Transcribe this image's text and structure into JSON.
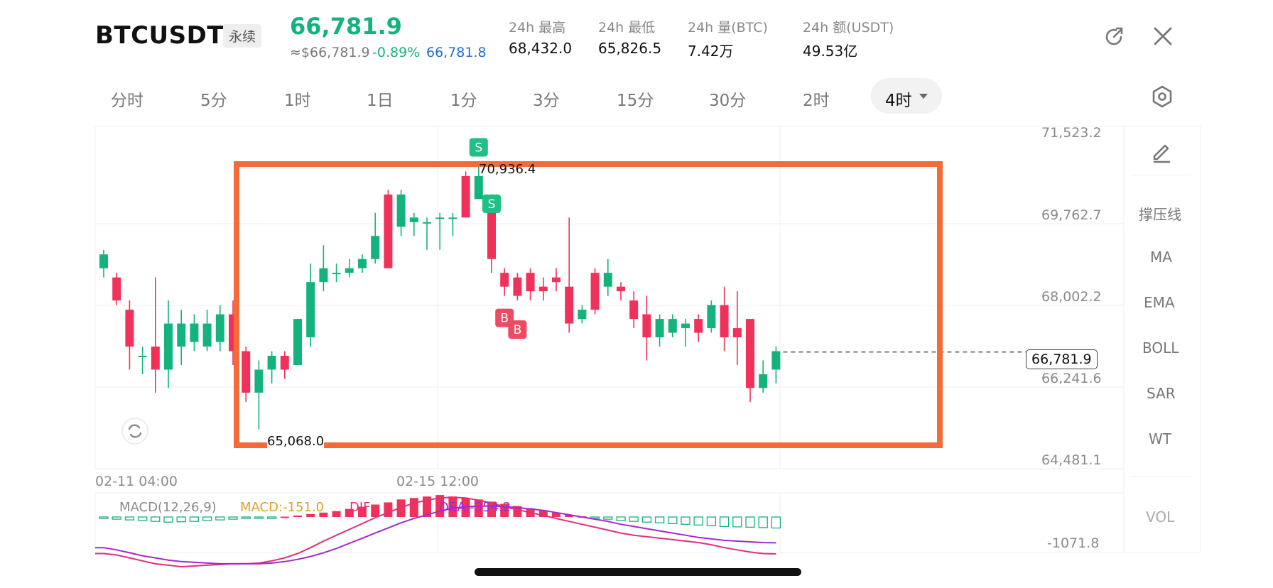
{
  "header": {
    "symbol": "BTCUSDT",
    "contract_type": "永续",
    "last_price": "66,781.9",
    "approx_usd": "≈$66,781.9",
    "change_pct": "-0.89%",
    "mark_price": "66,781.8",
    "stats": [
      {
        "label": "24h  最高",
        "value": "68,432.0"
      },
      {
        "label": "24h  最低",
        "value": "65,826.5"
      },
      {
        "label": "24h  量(BTC)",
        "value": "7.42万"
      },
      {
        "label": "24h  额(USDT)",
        "value": "49.53亿"
      }
    ],
    "icons": {
      "share": "share-icon",
      "close": "close-icon"
    }
  },
  "timeframes": {
    "tabs": [
      "分时",
      "5分",
      "1时",
      "1日",
      "1分",
      "3分",
      "15分",
      "30分",
      "2时",
      "4时"
    ],
    "active": "4时",
    "settings_icon": "hexagon-settings-icon"
  },
  "side_panel": {
    "draw_icon": "pen-icon",
    "items": [
      "撑压线",
      "MA",
      "EMA",
      "BOLL",
      "SAR",
      "WT"
    ],
    "vol": "VOL"
  },
  "colors": {
    "up": "#14b37d",
    "down": "#f0325a",
    "highlight_box": "#f26b3a",
    "macd_line": "#e0307a",
    "signal_line": "#a12ad0"
  },
  "chart_data": {
    "type": "candlestick",
    "price_axis": [
      "71,523.2",
      "69,762.7",
      "68,002.2",
      "66,241.6",
      "64,481.1"
    ],
    "ylim": [
      64481.1,
      71523.2
    ],
    "x_labels": [
      "02-11 04:00",
      "02-15 12:00"
    ],
    "current_price_tag": "66,781.9",
    "max_marker": "70,936.4",
    "min_marker": "65,068.0",
    "candles": [
      {
        "o": 68600,
        "c": 68900,
        "h": 69000,
        "l": 68400
      },
      {
        "o": 68400,
        "c": 67900,
        "h": 68500,
        "l": 67800
      },
      {
        "o": 67700,
        "c": 66900,
        "h": 67900,
        "l": 66400
      },
      {
        "o": 66700,
        "c": 66700,
        "h": 66900,
        "l": 66300
      },
      {
        "o": 66900,
        "c": 66400,
        "h": 68400,
        "l": 65900
      },
      {
        "o": 66400,
        "c": 67400,
        "h": 67900,
        "l": 66000
      },
      {
        "o": 66900,
        "c": 67400,
        "h": 67700,
        "l": 66500
      },
      {
        "o": 67000,
        "c": 67400,
        "h": 67600,
        "l": 66800
      },
      {
        "o": 66900,
        "c": 67400,
        "h": 67700,
        "l": 66800
      },
      {
        "o": 67000,
        "c": 67600,
        "h": 67800,
        "l": 66800
      },
      {
        "o": 67600,
        "c": 66800,
        "h": 67900,
        "l": 66500
      },
      {
        "o": 66800,
        "c": 65900,
        "h": 66900,
        "l": 65700
      },
      {
        "o": 65900,
        "c": 66400,
        "h": 66600,
        "l": 65100
      },
      {
        "o": 66400,
        "c": 66700,
        "h": 66800,
        "l": 66100
      },
      {
        "o": 66700,
        "c": 66400,
        "h": 66800,
        "l": 66200
      },
      {
        "o": 66500,
        "c": 67500,
        "h": 67500,
        "l": 66500
      },
      {
        "o": 67100,
        "c": 68300,
        "h": 68700,
        "l": 66900
      },
      {
        "o": 68300,
        "c": 68600,
        "h": 69100,
        "l": 68100
      },
      {
        "o": 68500,
        "c": 68500,
        "h": 68700,
        "l": 68300
      },
      {
        "o": 68500,
        "c": 68600,
        "h": 68800,
        "l": 68400
      },
      {
        "o": 68600,
        "c": 68800,
        "h": 68900,
        "l": 68500
      },
      {
        "o": 68800,
        "c": 69300,
        "h": 69800,
        "l": 68700
      },
      {
        "o": 70200,
        "c": 68600,
        "h": 70300,
        "l": 68600
      },
      {
        "o": 69500,
        "c": 70200,
        "h": 70300,
        "l": 69300
      },
      {
        "o": 69600,
        "c": 69700,
        "h": 69800,
        "l": 69300
      },
      {
        "o": 69600,
        "c": 69600,
        "h": 69700,
        "l": 69000
      },
      {
        "o": 69700,
        "c": 69700,
        "h": 69800,
        "l": 69000
      },
      {
        "o": 69700,
        "c": 69700,
        "h": 69800,
        "l": 69300
      },
      {
        "o": 70600,
        "c": 69700,
        "h": 70700,
        "l": 69700
      },
      {
        "o": 70100,
        "c": 70600,
        "h": 70900,
        "l": 70100
      },
      {
        "o": 70000,
        "c": 68800,
        "h": 70200,
        "l": 68500
      },
      {
        "o": 68500,
        "c": 68200,
        "h": 68600,
        "l": 68000
      },
      {
        "o": 68400,
        "c": 68000,
        "h": 68500,
        "l": 67900
      },
      {
        "o": 68500,
        "c": 68100,
        "h": 68600,
        "l": 67900
      },
      {
        "o": 68200,
        "c": 68100,
        "h": 68400,
        "l": 67900
      },
      {
        "o": 68400,
        "c": 68300,
        "h": 68600,
        "l": 68100
      },
      {
        "o": 68200,
        "c": 67400,
        "h": 69700,
        "l": 67200
      },
      {
        "o": 67500,
        "c": 67700,
        "h": 67800,
        "l": 67400
      },
      {
        "o": 68500,
        "c": 67700,
        "h": 68600,
        "l": 67600
      },
      {
        "o": 68200,
        "c": 68500,
        "h": 68800,
        "l": 68000
      },
      {
        "o": 68200,
        "c": 68100,
        "h": 68300,
        "l": 67900
      },
      {
        "o": 67900,
        "c": 67500,
        "h": 68100,
        "l": 67300
      },
      {
        "o": 67600,
        "c": 67100,
        "h": 68000,
        "l": 66600
      },
      {
        "o": 67100,
        "c": 67500,
        "h": 67600,
        "l": 66900
      },
      {
        "o": 67200,
        "c": 67500,
        "h": 67600,
        "l": 67100
      },
      {
        "o": 67300,
        "c": 67400,
        "h": 67500,
        "l": 66900
      },
      {
        "o": 67500,
        "c": 67200,
        "h": 67600,
        "l": 67000
      },
      {
        "o": 67300,
        "c": 67800,
        "h": 67900,
        "l": 67200
      },
      {
        "o": 67800,
        "c": 67100,
        "h": 68200,
        "l": 66800
      },
      {
        "o": 67300,
        "c": 67100,
        "h": 68100,
        "l": 66500
      },
      {
        "o": 67500,
        "c": 66000,
        "h": 67500,
        "l": 65700
      },
      {
        "o": 66000,
        "c": 66300,
        "h": 66600,
        "l": 65900
      },
      {
        "o": 66400,
        "c": 66800,
        "h": 66900,
        "l": 66100
      }
    ],
    "markers": [
      {
        "label": "S",
        "type": "sell",
        "candle": 29,
        "pos": "above"
      },
      {
        "label": "S",
        "type": "sell",
        "candle": 30,
        "pos": "above"
      },
      {
        "label": "B",
        "type": "buy",
        "candle": 31,
        "pos": "below"
      },
      {
        "label": "B",
        "type": "buy",
        "candle": 32,
        "pos": "below"
      }
    ],
    "macd": {
      "legend": [
        "MACD(12,26,9)",
        "MACD:-151.0",
        "DIF",
        "DEA:-354.2"
      ],
      "axis_label": "-1071.8",
      "hist": [
        -20,
        -30,
        -40,
        -50,
        -60,
        -70,
        -65,
        -60,
        -50,
        -40,
        -30,
        -20,
        -10,
        -5,
        5,
        20,
        40,
        60,
        80,
        110,
        140,
        170,
        200,
        240,
        260,
        280,
        300,
        280,
        260,
        240,
        210,
        180,
        150,
        120,
        90,
        60,
        30,
        10,
        -10,
        -30,
        -50,
        -60,
        -70,
        -80,
        -90,
        -100,
        -110,
        -120,
        -130,
        -135,
        -140,
        -145,
        -151
      ],
      "dif": [
        -500,
        -520,
        -560,
        -600,
        -640,
        -660,
        -680,
        -670,
        -660,
        -650,
        -640,
        -640,
        -630,
        -600,
        -560,
        -500,
        -420,
        -330,
        -250,
        -170,
        -90,
        -10,
        60,
        130,
        190,
        230,
        260,
        270,
        260,
        230,
        190,
        140,
        100,
        60,
        20,
        -20,
        -60,
        -100,
        -140,
        -180,
        -220,
        -250,
        -270,
        -290,
        -310,
        -330,
        -350,
        -380,
        -420,
        -450,
        -480,
        -500,
        -505
      ],
      "dea": [
        -420,
        -450,
        -490,
        -530,
        -560,
        -590,
        -610,
        -620,
        -630,
        -640,
        -640,
        -640,
        -640,
        -630,
        -610,
        -580,
        -540,
        -490,
        -430,
        -360,
        -290,
        -220,
        -150,
        -80,
        -20,
        30,
        80,
        120,
        140,
        150,
        150,
        140,
        130,
        110,
        90,
        60,
        30,
        0,
        -30,
        -60,
        -100,
        -130,
        -160,
        -190,
        -220,
        -250,
        -280,
        -300,
        -320,
        -330,
        -340,
        -350,
        -354
      ]
    }
  }
}
